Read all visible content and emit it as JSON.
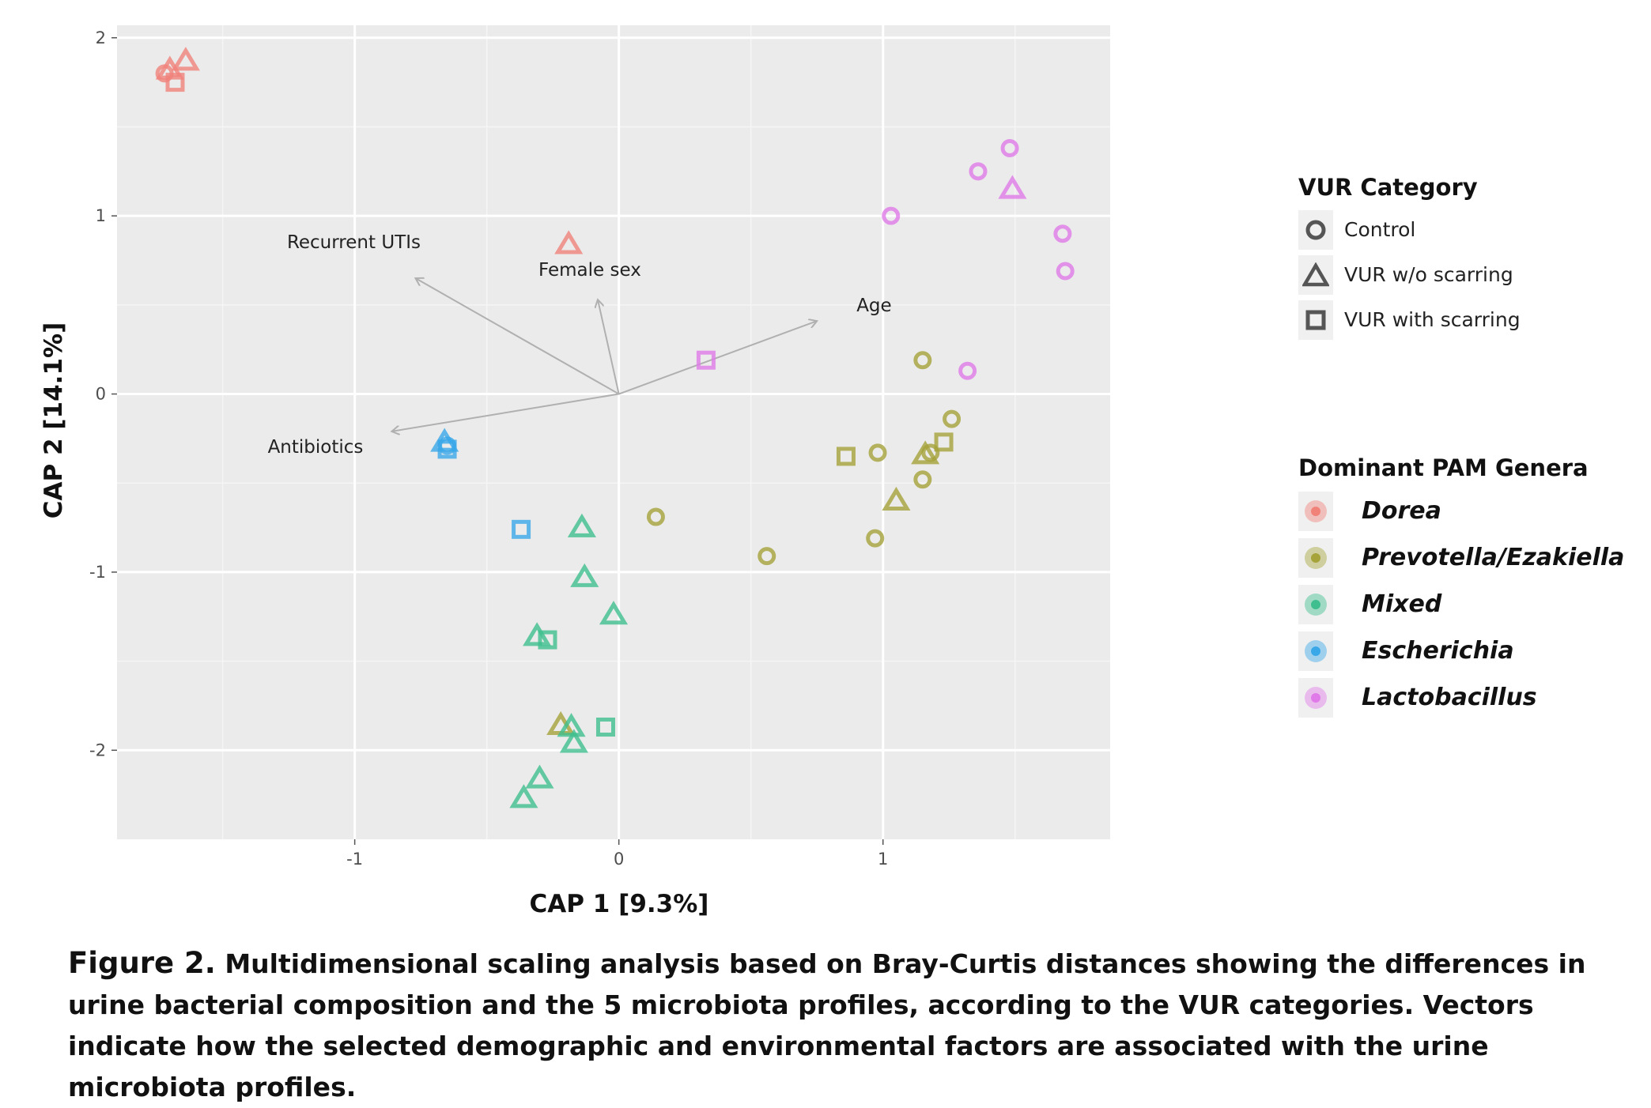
{
  "chart_data": {
    "type": "scatter",
    "xlabel": "CAP 1 [9.3%]",
    "ylabel": "CAP 2 [14.1%]",
    "xlim": [
      -1.9,
      1.86
    ],
    "ylim": [
      -2.5,
      2.07
    ],
    "x_ticks": [
      {
        "value": -1,
        "label": "-1"
      },
      {
        "value": 0,
        "label": "0"
      },
      {
        "value": 1,
        "label": "1"
      }
    ],
    "y_ticks": [
      {
        "value": 2,
        "label": "2"
      },
      {
        "value": 1,
        "label": "1"
      },
      {
        "value": 0,
        "label": "0"
      },
      {
        "value": -1,
        "label": "-1"
      },
      {
        "value": -2,
        "label": "-2"
      }
    ],
    "grid": true,
    "background": "#ebebeb",
    "vectors": [
      {
        "label": "Recurrent UTIs",
        "x": -0.77,
        "y": 0.65
      },
      {
        "label": "Female sex",
        "x": -0.08,
        "y": 0.53
      },
      {
        "label": "Age",
        "x": 0.75,
        "y": 0.41
      },
      {
        "label": "Antibiotics",
        "x": -0.86,
        "y": -0.21
      }
    ],
    "points": [
      {
        "x": -1.72,
        "y": 1.8,
        "shape": "circle",
        "genus": "Dorea"
      },
      {
        "x": -1.7,
        "y": 1.82,
        "shape": "triangle",
        "genus": "Dorea"
      },
      {
        "x": -1.68,
        "y": 1.75,
        "shape": "square",
        "genus": "Dorea"
      },
      {
        "x": -1.64,
        "y": 1.87,
        "shape": "triangle",
        "genus": "Dorea"
      },
      {
        "x": -0.19,
        "y": 0.84,
        "shape": "triangle",
        "genus": "Dorea"
      },
      {
        "x": 1.15,
        "y": 0.19,
        "shape": "circle",
        "genus": "Prevotella/Ezakiella"
      },
      {
        "x": 1.26,
        "y": -0.14,
        "shape": "circle",
        "genus": "Prevotella/Ezakiella"
      },
      {
        "x": 0.98,
        "y": -0.33,
        "shape": "circle",
        "genus": "Prevotella/Ezakiella"
      },
      {
        "x": 1.15,
        "y": -0.48,
        "shape": "circle",
        "genus": "Prevotella/Ezakiella"
      },
      {
        "x": 0.97,
        "y": -0.81,
        "shape": "circle",
        "genus": "Prevotella/Ezakiella"
      },
      {
        "x": 0.14,
        "y": -0.69,
        "shape": "circle",
        "genus": "Prevotella/Ezakiella"
      },
      {
        "x": 0.56,
        "y": -0.91,
        "shape": "circle",
        "genus": "Prevotella/Ezakiella"
      },
      {
        "x": 1.18,
        "y": -0.33,
        "shape": "circle",
        "genus": "Prevotella/Ezakiella"
      },
      {
        "x": 1.16,
        "y": -0.34,
        "shape": "triangle",
        "genus": "Prevotella/Ezakiella"
      },
      {
        "x": 1.05,
        "y": -0.6,
        "shape": "triangle",
        "genus": "Prevotella/Ezakiella"
      },
      {
        "x": 0.86,
        "y": -0.35,
        "shape": "square",
        "genus": "Prevotella/Ezakiella"
      },
      {
        "x": 1.23,
        "y": -0.27,
        "shape": "square",
        "genus": "Prevotella/Ezakiella"
      },
      {
        "x": -0.22,
        "y": -1.86,
        "shape": "triangle",
        "genus": "Prevotella/Ezakiella"
      },
      {
        "x": -0.14,
        "y": -0.75,
        "shape": "triangle",
        "genus": "Mixed"
      },
      {
        "x": -0.13,
        "y": -1.03,
        "shape": "triangle",
        "genus": "Mixed"
      },
      {
        "x": -0.02,
        "y": -1.24,
        "shape": "triangle",
        "genus": "Mixed"
      },
      {
        "x": -0.31,
        "y": -1.36,
        "shape": "triangle",
        "genus": "Mixed"
      },
      {
        "x": -0.27,
        "y": -1.38,
        "shape": "square",
        "genus": "Mixed"
      },
      {
        "x": -0.18,
        "y": -1.87,
        "shape": "triangle",
        "genus": "Mixed"
      },
      {
        "x": -0.17,
        "y": -1.96,
        "shape": "triangle",
        "genus": "Mixed"
      },
      {
        "x": -0.05,
        "y": -1.87,
        "shape": "square",
        "genus": "Mixed"
      },
      {
        "x": -0.3,
        "y": -2.16,
        "shape": "triangle",
        "genus": "Mixed"
      },
      {
        "x": -0.36,
        "y": -2.27,
        "shape": "triangle",
        "genus": "Mixed"
      },
      {
        "x": -0.66,
        "y": -0.27,
        "shape": "triangle",
        "genus": "Escherichia"
      },
      {
        "x": -0.65,
        "y": -0.29,
        "shape": "circle",
        "genus": "Escherichia"
      },
      {
        "x": -0.65,
        "y": -0.31,
        "shape": "square",
        "genus": "Escherichia"
      },
      {
        "x": -0.37,
        "y": -0.76,
        "shape": "square",
        "genus": "Escherichia"
      },
      {
        "x": 1.48,
        "y": 1.38,
        "shape": "circle",
        "genus": "Lactobacillus"
      },
      {
        "x": 1.36,
        "y": 1.25,
        "shape": "circle",
        "genus": "Lactobacillus"
      },
      {
        "x": 1.49,
        "y": 1.15,
        "shape": "triangle",
        "genus": "Lactobacillus"
      },
      {
        "x": 1.03,
        "y": 1.0,
        "shape": "circle",
        "genus": "Lactobacillus"
      },
      {
        "x": 1.68,
        "y": 0.9,
        "shape": "circle",
        "genus": "Lactobacillus"
      },
      {
        "x": 1.69,
        "y": 0.69,
        "shape": "circle",
        "genus": "Lactobacillus"
      },
      {
        "x": 1.32,
        "y": 0.13,
        "shape": "circle",
        "genus": "Lactobacillus"
      },
      {
        "x": 0.33,
        "y": 0.19,
        "shape": "square",
        "genus": "Lactobacillus"
      }
    ],
    "colors": {
      "Dorea": "#f0827a",
      "Prevotella/Ezakiella": "#a5a33a",
      "Mixed": "#3fbf8f",
      "Escherichia": "#3aa8e8",
      "Lactobacillus": "#e07ae8"
    },
    "legend_shape": {
      "title": "VUR Category",
      "items": [
        {
          "shape": "circle",
          "label": "Control"
        },
        {
          "shape": "triangle",
          "label": "VUR w/o scarring"
        },
        {
          "shape": "square",
          "label": "VUR with scarring"
        }
      ]
    },
    "legend_color": {
      "title": "Dominant PAM Genera",
      "items": [
        "Dorea",
        "Prevotella/Ezakiella",
        "Mixed",
        "Escherichia",
        "Lactobacillus"
      ]
    }
  },
  "caption": {
    "figure_label": "Figure 2.",
    "text": "Multidimensional scaling analysis based on Bray-Curtis distances showing the differences in urine bacterial composition and the 5 microbiota profiles, according to the VUR categories. Vectors indicate how the selected demographic and environmental factors are associated with the urine microbiota profiles."
  }
}
